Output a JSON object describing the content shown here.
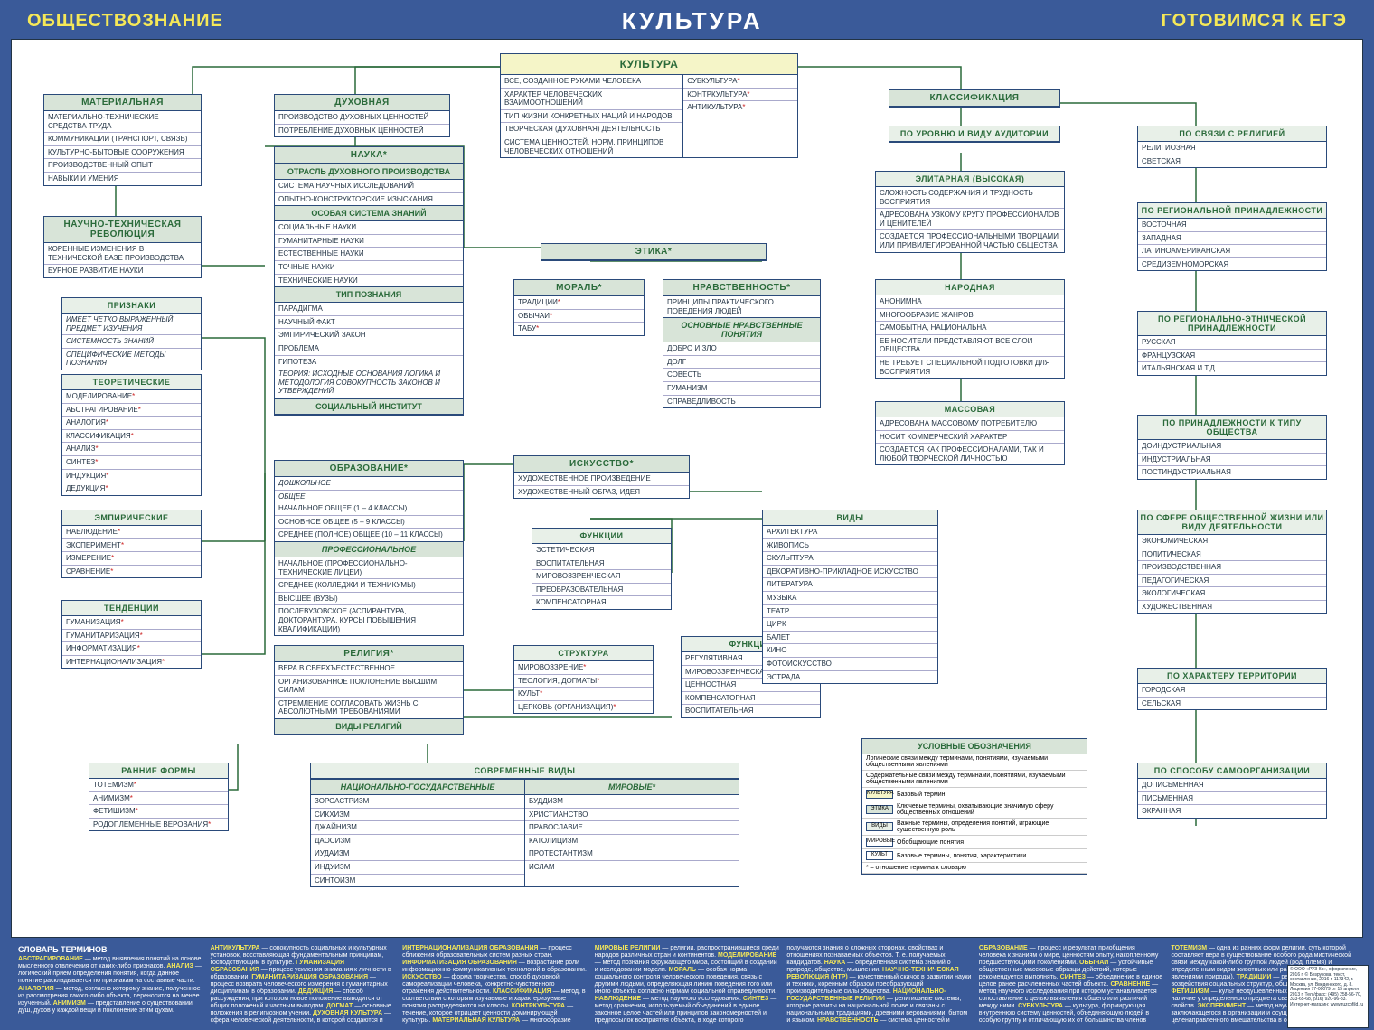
{
  "header": {
    "left": "ОБЩЕСТВОЗНАНИЕ",
    "center": "КУЛЬТУРА",
    "right": "ГОТОВИМСЯ К ЕГЭ"
  },
  "colors": {
    "page_bg": "#3a5a99",
    "canvas_bg": "#ffffff",
    "header_yellow": "#f5e858",
    "box_border": "#2a4a7a",
    "title_bg": "#d8e4d8",
    "title_fg": "#2a6a3a",
    "main_title_bg": "#f5f5c8",
    "star": "#c22222"
  },
  "kultura_main": {
    "title": "КУЛЬТУРА",
    "left": [
      "ВСЕ, СОЗДАННОЕ РУКАМИ ЧЕЛОВЕКА",
      "ХАРАКТЕР ЧЕЛОВЕЧЕСКИХ ВЗАИМООТНОШЕНИЙ",
      "ТИП ЖИЗНИ КОНКРЕТНЫХ НАЦИЙ И НАРОДОВ",
      "ТВОРЧЕСКАЯ (ДУХОВНАЯ) ДЕЯТЕЛЬНОСТЬ",
      "СИСТЕМА ЦЕННОСТЕЙ, НОРМ, ПРИНЦИПОВ ЧЕЛОВЕЧЕСКИХ ОТНОШЕНИЙ"
    ],
    "right": [
      "СУБКУЛЬТУРА",
      "КОНТРКУЛЬТУРА",
      "АНТИКУЛЬТУРА"
    ]
  },
  "material": {
    "title": "МАТЕРИАЛЬНАЯ",
    "rows": [
      "МАТЕРИАЛЬНО-ТЕХНИЧЕСКИЕ СРЕДСТВА ТРУДА",
      "КОММУНИКАЦИИ (ТРАНСПОРТ, СВЯЗЬ)",
      "КУЛЬТУРНО-БЫТОВЫЕ СООРУЖЕНИЯ",
      "ПРОИЗВОДСТВЕННЫЙ ОПЫТ",
      "НАВЫКИ И УМЕНИЯ"
    ]
  },
  "ntr": {
    "title": "НАУЧНО-ТЕХНИЧЕСКАЯ РЕВОЛЮЦИЯ",
    "rows": [
      "КОРЕННЫЕ ИЗМЕНЕНИЯ В ТЕХНИЧЕСКОЙ БАЗЕ ПРОИЗВОДСТВА",
      "БУРНОЕ РАЗВИТИЕ НАУКИ"
    ]
  },
  "priznaki": {
    "title": "ПРИЗНАКИ",
    "rows": [
      "ИМЕЕТ ЧЕТКО ВЫРАЖЕННЫЙ ПРЕДМЕТ ИЗУЧЕНИЯ",
      "СИСТЕМНОСТЬ ЗНАНИЙ",
      "СПЕЦИФИЧЕСКИЕ МЕТОДЫ ПОЗНАНИЯ"
    ]
  },
  "teoret": {
    "title": "ТЕОРЕТИЧЕСКИЕ",
    "rows": [
      "МОДЕЛИРОВАНИЕ",
      "АБСТРАГИРОВАНИЕ",
      "АНАЛОГИЯ",
      "КЛАССИФИКАЦИЯ",
      "АНАЛИЗ",
      "СИНТЕЗ",
      "ИНДУКЦИЯ",
      "ДЕДУКЦИЯ"
    ]
  },
  "empir": {
    "title": "ЭМПИРИЧЕСКИЕ",
    "rows": [
      "НАБЛЮДЕНИЕ",
      "ЭКСПЕРИМЕНТ",
      "ИЗМЕРЕНИЕ",
      "СРАВНЕНИЕ"
    ]
  },
  "tendencii": {
    "title": "ТЕНДЕНЦИИ",
    "rows": [
      "ГУМАНИЗАЦИЯ",
      "ГУМАНИТАРИЗАЦИЯ",
      "ИНФОРМАТИЗАЦИЯ",
      "ИНТЕРНАЦИОНАЛИЗАЦИЯ"
    ]
  },
  "rannie": {
    "title": "РАННИЕ ФОРМЫ",
    "rows": [
      "ТОТЕМИЗМ",
      "АНИМИЗМ",
      "ФЕТИШИЗМ",
      "РОДОПЛЕМЕННЫЕ ВЕРОВАНИЯ"
    ]
  },
  "duhovnaya": {
    "title": "ДУХОВНАЯ",
    "rows": [
      "ПРОИЗВОДСТВО ДУХОВНЫХ ЦЕННОСТЕЙ",
      "ПОТРЕБЛЕНИЕ ДУХОВНЫХ ЦЕННОСТЕЙ"
    ]
  },
  "nauka": {
    "title": "НАУКА",
    "sec1": "ОТРАСЛЬ ДУХОВНОГО ПРОИЗВОДСТВА",
    "rows1": [
      "СИСТЕМА НАУЧНЫХ ИССЛЕДОВАНИЙ",
      "ОПЫТНО-КОНСТРУКТОРСКИЕ ИЗЫСКАНИЯ"
    ],
    "sec2": "ОСОБАЯ СИСТЕМА ЗНАНИЙ",
    "rows2": [
      "СОЦИАЛЬНЫЕ НАУКИ",
      "ГУМАНИТАРНЫЕ НАУКИ",
      "ЕСТЕСТВЕННЫЕ НАУКИ",
      "ТОЧНЫЕ НАУКИ",
      "ТЕХНИЧЕСКИЕ НАУКИ"
    ],
    "sec3": "ТИП ПОЗНАНИЯ",
    "rows3": [
      "ПАРАДИГМА",
      "НАУЧНЫЙ ФАКТ",
      "ЭМПИРИЧЕСКИЙ ЗАКОН",
      "ПРОБЛЕМА",
      "ГИПОТЕЗА"
    ],
    "teoria": "ТЕОРИЯ: ИСХОДНЫЕ ОСНОВАНИЯ ЛОГИКА И МЕТОДОЛОГИЯ СОВОКУПНОСТЬ ЗАКОНОВ И УТВЕРЖДЕНИЙ",
    "sec4": "СОЦИАЛЬНЫЙ ИНСТИТУТ"
  },
  "obraz": {
    "title": "ОБРАЗОВАНИЕ",
    "rows_i": [
      "ДОШКОЛЬНОЕ",
      "ОБЩЕЕ"
    ],
    "rows1": [
      "НАЧАЛЬНОЕ ОБЩЕЕ (1 – 4 КЛАССЫ)",
      "ОСНОВНОЕ ОБЩЕЕ (5 – 9 КЛАССЫ)",
      "СРЕДНЕЕ (ПОЛНОЕ) ОБЩЕЕ (10 – 11 КЛАССЫ)"
    ],
    "sec2": "ПРОФЕССИОНАЛЬНОЕ",
    "rows2": [
      "НАЧАЛЬНОЕ (ПРОФЕССИОНАЛЬНО-ТЕХНИЧЕСКИЕ ЛИЦЕИ)",
      "СРЕДНЕЕ (КОЛЛЕДЖИ И ТЕХНИКУМЫ)",
      "ВЫСШЕЕ (ВУЗЫ)",
      "ПОСЛЕВУЗОВСКОЕ (АСПИРАНТУРА, ДОКТОРАНТУРА, КУРСЫ ПОВЫШЕНИЯ КВАЛИФИКАЦИИ)"
    ]
  },
  "religia": {
    "title": "РЕЛИГИЯ",
    "rows": [
      "ВЕРА В СВЕРХЪЕСТЕСТВЕННОЕ",
      "ОРГАНИЗОВАННОЕ ПОКЛОНЕНИЕ ВЫСШИМ СИЛАМ",
      "СТРЕМЛЕНИЕ СОГЛАСОВАТЬ ЖИЗНЬ С АБСОЛЮТНЫМИ ТРЕБОВАНИЯМИ"
    ],
    "sec": "ВИДЫ РЕЛИГИЙ"
  },
  "sovrem": {
    "title": "СОВРЕМЕННЫЕ ВИДЫ",
    "sec1": "НАЦИОНАЛЬНО-ГОСУДАРСТВЕННЫЕ",
    "rows1": [
      "ЗОРОАСТРИЗМ",
      "СИКХИЗМ",
      "ДЖАЙНИЗМ",
      "ДАОСИЗМ",
      "ИУДАИЗМ",
      "ИНДУИЗМ",
      "СИНТОИЗМ"
    ],
    "sec2": "МИРОВЫЕ",
    "rows2": [
      "БУДДИЗМ",
      "ХРИСТИАНСТВО",
      "ПРАВОСЛАВИЕ",
      "КАТОЛИЦИЗМ",
      "ПРОТЕСТАНТИЗМ",
      "ИСЛАМ"
    ]
  },
  "etika": {
    "title": "ЭТИКА"
  },
  "moral": {
    "title": "МОРАЛЬ",
    "rows": [
      "ТРАДИЦИИ",
      "ОБЫЧАИ",
      "ТАБУ"
    ]
  },
  "nrav": {
    "title": "НРАВСТВЕННОСТЬ",
    "rows1": [
      "ПРИНЦИПЫ ПРАКТИЧЕСКОГО ПОВЕДЕНИЯ ЛЮДЕЙ"
    ],
    "sec": "ОСНОВНЫЕ НРАВСТВЕННЫЕ ПОНЯТИЯ",
    "rows2": [
      "ДОБРО И ЗЛО",
      "ДОЛГ",
      "СОВЕСТЬ",
      "ГУМАНИЗМ",
      "СПРАВЕДЛИВОСТЬ"
    ]
  },
  "iskusstvo": {
    "title": "ИСКУССТВО",
    "rows": [
      "ХУДОЖЕСТВЕННОЕ ПРОИЗВЕДЕНИЕ",
      "ХУДОЖЕСТВЕННЫЙ ОБРАЗ, ИДЕЯ"
    ]
  },
  "funkcii1": {
    "title": "ФУНКЦИИ",
    "rows": [
      "ЭСТЕТИЧЕСКАЯ",
      "ВОСПИТАТЕЛЬНАЯ",
      "МИРОВОЗЗРЕНЧЕСКАЯ",
      "ПРЕОБРАЗОВАТЕЛЬНАЯ",
      "КОМПЕНСАТОРНАЯ"
    ]
  },
  "struktura": {
    "title": "СТРУКТУРА",
    "rows": [
      "МИРОВОЗЗРЕНИЕ",
      "ТЕОЛОГИЯ, ДОГМАТЫ",
      "КУЛЬТ",
      "ЦЕРКОВЬ (ОРГАНИЗАЦИЯ)"
    ]
  },
  "funkcii2": {
    "title": "ФУНКЦИИ",
    "rows": [
      "РЕГУЛЯТИВНАЯ",
      "МИРОВОЗЗРЕНЧЕСКАЯ",
      "ЦЕННОСТНАЯ",
      "КОМПЕНСАТОРНАЯ",
      "ВОСПИТАТЕЛЬНАЯ"
    ]
  },
  "vidy": {
    "title": "ВИДЫ",
    "rows": [
      "АРХИТЕКТУРА",
      "ЖИВОПИСЬ",
      "СКУЛЬПТУРА",
      "ДЕКОРАТИВНО-ПРИКЛАДНОЕ ИСКУССТВО",
      "ЛИТЕРАТУРА",
      "МУЗЫКА",
      "ТЕАТР",
      "ЦИРК",
      "БАЛЕТ",
      "КИНО",
      "ФОТОИСКУССТВО",
      "ЭСТРАДА"
    ]
  },
  "klass": {
    "title": "КЛАССИФИКАЦИЯ"
  },
  "po_urovnyu": {
    "title": "ПО УРОВНЮ И ВИДУ АУДИТОРИИ"
  },
  "elitar": {
    "title": "ЭЛИТАРНАЯ (ВЫСОКАЯ)",
    "rows": [
      "СЛОЖНОСТЬ СОДЕРЖАНИЯ И ТРУДНОСТЬ ВОСПРИЯТИЯ",
      "АДРЕСОВАНА УЗКОМУ КРУГУ ПРОФЕССИОНАЛОВ И ЦЕНИТЕЛЕЙ",
      "СОЗДАЕТСЯ ПРОФЕССИОНАЛЬНЫМИ ТВОРЦАМИ ИЛИ ПРИВИЛЕГИРОВАННОЙ ЧАСТЬЮ ОБЩЕСТВА"
    ]
  },
  "narod": {
    "title": "НАРОДНАЯ",
    "rows": [
      "АНОНИМНА",
      "МНОГООБРАЗИЕ ЖАНРОВ",
      "САМОБЫТНА, НАЦИОНАЛЬНА",
      "ЕЕ НОСИТЕЛИ ПРЕДСТАВЛЯЮТ ВСЕ СЛОИ ОБЩЕСТВА",
      "НЕ ТРЕБУЕТ СПЕЦИАЛЬНОЙ ПОДГОТОВКИ ДЛЯ ВОСПРИЯТИЯ"
    ]
  },
  "mass": {
    "title": "МАССОВАЯ",
    "rows": [
      "АДРЕСОВАНА МАССОВОМУ ПОТРЕБИТЕЛЮ",
      "НОСИТ КОММЕРЧЕСКИЙ ХАРАКТЕР",
      "СОЗДАЕТСЯ КАК ПРОФЕССИОНАЛАМИ, ТАК И ЛЮБОЙ ТВОРЧЕСКОЙ ЛИЧНОСТЬЮ"
    ]
  },
  "po_religii": {
    "title": "ПО СВЯЗИ С РЕЛИГИЕЙ",
    "rows": [
      "РЕЛИГИОЗНАЯ",
      "СВЕТСКАЯ"
    ]
  },
  "po_region": {
    "title": "ПО РЕГИОНАЛЬНОЙ ПРИНАДЛЕЖНОСТИ",
    "rows": [
      "ВОСТОЧНАЯ",
      "ЗАПАДНАЯ",
      "ЛАТИНОАМЕРИКАНСКАЯ",
      "СРЕДИЗЕМНОМОРСКАЯ"
    ]
  },
  "po_etnic": {
    "title": "ПО РЕГИОНАЛЬНО-ЭТНИЧЕСКОЙ ПРИНАДЛЕЖНОСТИ",
    "rows": [
      "РУССКАЯ",
      "ФРАНЦУЗСКАЯ",
      "ИТАЛЬЯНСКАЯ И Т.Д."
    ]
  },
  "po_tipu": {
    "title": "ПО ПРИНАДЛЕЖНОСТИ К ТИПУ ОБЩЕСТВА",
    "rows": [
      "ДОИНДУСТРИАЛЬНАЯ",
      "ИНДУСТРИАЛЬНАЯ",
      "ПОСТИНДУСТРИАЛЬНАЯ"
    ]
  },
  "po_sfere": {
    "title": "ПО СФЕРЕ ОБЩЕСТВЕННОЙ ЖИЗНИ ИЛИ ВИДУ ДЕЯТЕЛЬНОСТИ",
    "rows": [
      "ЭКОНОМИЧЕСКАЯ",
      "ПОЛИТИЧЕСКАЯ",
      "ПРОИЗВОДСТВЕННАЯ",
      "ПЕДАГОГИЧЕСКАЯ",
      "ЭКОЛОГИЧЕСКАЯ",
      "ХУДОЖЕСТВЕННАЯ"
    ]
  },
  "po_terr": {
    "title": "ПО ХАРАКТЕРУ ТЕРРИТОРИИ",
    "rows": [
      "ГОРОДСКАЯ",
      "СЕЛЬСКАЯ"
    ]
  },
  "po_samoorg": {
    "title": "ПО СПОСОБУ САМООРГАНИЗАЦИИ",
    "rows": [
      "ДОПИСЬМЕННАЯ",
      "ПИСЬМЕННАЯ",
      "ЭКРАННАЯ"
    ]
  },
  "legend": {
    "title": "УСЛОВНЫЕ ОБОЗНАЧЕНИЯ",
    "rows": [
      {
        "text": "Логические связи между терминами, понятиями, изучаемыми общественными явлениями"
      },
      {
        "text": "Содержательные связи между терминами, понятиями, изучаемыми общественными явлениями"
      },
      {
        "swatch": "#f5f5c8",
        "label": "КУЛЬТУРА",
        "text": "Базовый термин"
      },
      {
        "swatch": "#d8e4d8",
        "label": "ЭТИКА",
        "text": "Ключевые термины, охватывающие значимую сферу общественных отношений"
      },
      {
        "swatch": "#e8f0e8",
        "label": "ВИДЫ",
        "text": "Важные термины, определения понятий, играющие существенную роль"
      },
      {
        "swatch": "#ffffff",
        "label": "МИРОВЫЕ",
        "text": "Обобщающие понятия"
      },
      {
        "swatch": "#ffffff",
        "label": "КУЛЬТ",
        "text": "Базовые термины, понятия, характеристики"
      },
      {
        "text": "* – отношение термина к словарю"
      }
    ]
  },
  "glossary_title": "СЛОВАРЬ ТЕРМИНОВ",
  "glossary": [
    "АБСТРАГИРОВАНИЕ — метод выявления понятий на основе мысленного отвлечения от каких-либо признаков. АНАЛИЗ — логический прием определения понятия, когда данное понятие раскладывается по признакам на составные части. АНАЛОГИЯ — метод, согласно которому знание, полученное из рассмотрения какого-либо объекта, переносится на менее изученный. АНИМИЗМ — представление о существовании душ, духов у каждой вещи и поклонение этим духам.",
    "АНТИКУЛЬТУРА — совокупность социальных и культурных установок, восставляющая фундаментальным принципам, господствующим в культуре. ГУМАНИЗАЦИЯ ОБРАЗОВАНИЯ — процесс усиления внимания к личности в образовании. ГУМАНИТАРИЗАЦИЯ ОБРАЗОВАНИЯ — процесс возврата человеческого измерения к гуманитарных дисциплинам в образовании. ДЕДУКЦИЯ — способ рассуждения, при котором новое положение выводится от общих положений к частным выводам. ДОГМАТ — основные положения в религиозном учении. ДУХОВНАЯ КУЛЬТУРА — сфера человеческой деятельности, в которой создаются и осваиваются духовные объекты. ИЗМЕРЕНИЕ — количественное соизмерение сопоставление показателей. ИНДУКЦИЯ — способ рассуждения, при котором новое положение выводится от частных к обобщенным.",
    "ИНТЕРНАЦИОНАЛИЗАЦИЯ ОБРАЗОВАНИЯ — процесс сближения образовательных систем разных стран. ИНФОРМАТИЗАЦИЯ ОБРАЗОВАНИЯ — возрастание роли информационно-коммуникативных технологий в образовании. ИСКУССТВО — форма творчества, способ духовной самореализации человека, конкретно-чувственного отражения действительности. КЛАССИФИКАЦИЯ — метод, в соответствии с которым изучаемые и характеризуемые понятия распределяются на классы. КОНТРКУЛЬТУРА — течение, которое отрицает ценности доминирующей культуры. МАТЕРИАЛЬНАЯ КУЛЬТУРА — многообразие производимых человеком предметов, а также природные вещи и явления, измененные воздействием человека.",
    "МИРОВЫЕ РЕЛИГИИ — религии, распространившиеся среди народов различных стран и континентов. МОДЕЛИРОВАНИЕ — метод познания окружающего мира, состоящий в создании и исследовании модели. МОРАЛЬ — особая норма социального контроля человеческого поведения, связь с другими людьми, определяющая линию поведения того или иного объекта согласно нормам социальной справедливости. НАБЛЮДЕНИЕ — метод научного исследования. СИНТЕЗ — метод сравнения, используемый объединений в единое законное целое частей или принципов закономерностей и предпосылок восприятия объекта, в ходе которого",
    "получаются знания о сложных сторонах, свойствах и отношениях познаваемых объектов. Т. е. получаемых кандидатов. НАУКА — определенная система знаний о природе, обществе, мышлении. НАУЧНО-ТЕХНИЧЕСКАЯ РЕВОЛЮЦИЯ (НТР) — качественный скачок в развитии науки и техники, коренным образом преобразующий производительные силы общества. НАЦИОНАЛЬНО-ГОСУДАРСТВЕННЫЕ РЕЛИГИИ — религиозные системы, которые развиты на национальной почве и связаны с национальными традициями, древними верованиями, бытом и языком. НРАВСТВЕННОСТЬ — система ценностей и предписаний, предназначенных для регулирования деятельности людей.",
    "ОБРАЗОВАНИЕ — процесс и результат приобщения человека к знаниям о мире, ценностям опыту, накопленному предшествующими поколениями. ОБЫЧАИ — устойчивые общественные массовые образцы действий, которые рекомендуется выполнять. СИНТЕЗ — объединение в единое целое ранее расчлененных частей объекта. СРАВНЕНИЕ — метод научного исследования при котором устанавливается сопоставление с целью выявления общего или различий между ними. СУБКУЛЬТУРА — культура, формирующая внутреннюю систему ценностей, объединяющую людей в особую группу и отличающую их от большинства членов общества. ТАБУ — запрет. ТЕОЛОГИЯ — богословие, совокупность религиозных доктрин о соотношении всего с богом.",
    "ТОТЕМИЗМ — одна из ранних форм религии, суть которой составляет вера в существование особого рода мистической связи между какой-либо группой людей (род, племя) и определенным видом животных или растений (реже — явлениями природы). ТРАДИЦИИ — результативные воздействия социальных структур, общественных институтов. ФЕТИШИЗМ — культ неодушевленных вещей, вера в наличие у определенного предмета сверхъестественных свойств. ЭКСПЕРИМЕНТ — метод научного исследования, заключающегося в организации и осуществлении целенаправленного вмешательства в объект. ЭТИКА — философское учение о морали."
  ],
  "publisher": "© ООО «РУЗ Ко», оформление, 2016 г. © Безрукова, текст, составление, 2016 г. 117342, г. Москва, ул. Введенского, д. 8. Лицензия 77-00079 от 15 апреля 2013 г. Тел./факс: (495) 258-56-70, 333-65-68, (916) 920-96-83. Интернет-магазин: www.ruzcofild.ru"
}
